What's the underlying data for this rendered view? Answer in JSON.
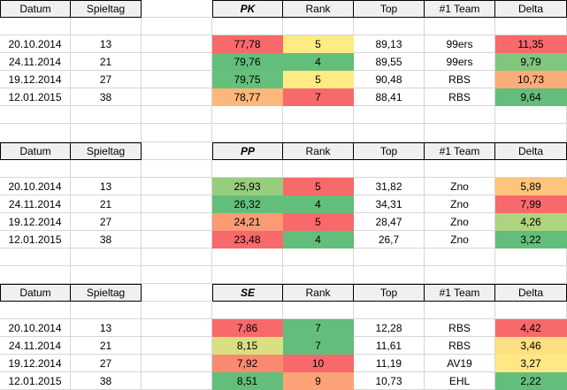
{
  "palette": {
    "red": "#F8696B",
    "yellow": "#FFEB84",
    "green": "#63BE7B",
    "gridline": "#d6d6d6",
    "header_fill": "#f0f0f0",
    "header_border": "#000000",
    "text": "#000000"
  },
  "columns": {
    "datum": "Datum",
    "spieltag": "Spieltag",
    "rank": "Rank",
    "top": "Top",
    "team": "#1 Team",
    "delta": "Delta"
  },
  "tables": [
    {
      "metric": "PK",
      "rows": [
        {
          "datum": "20.10.2014",
          "spieltag": "13",
          "value": "77,78",
          "value_bg": "#F8696B",
          "rank": "5",
          "rank_bg": "#FFEB84",
          "top": "89,13",
          "team": "99ers",
          "delta": "11,35",
          "delta_bg": "#F8696B"
        },
        {
          "datum": "24.11.2014",
          "spieltag": "21",
          "value": "79,76",
          "value_bg": "#63BE7B",
          "rank": "4",
          "rank_bg": "#63BE7B",
          "top": "89,55",
          "team": "99ers",
          "delta": "9,79",
          "delta_bg": "#7FC77D"
        },
        {
          "datum": "19.12.2014",
          "spieltag": "27",
          "value": "79,75",
          "value_bg": "#66BF7B",
          "rank": "5",
          "rank_bg": "#FFEB84",
          "top": "90,48",
          "team": "RBS",
          "delta": "10,73",
          "delta_bg": "#FBAC78"
        },
        {
          "datum": "12.01.2015",
          "spieltag": "38",
          "value": "78,77",
          "value_bg": "#FCB77A",
          "rank": "7",
          "rank_bg": "#F8696B",
          "top": "88,41",
          "team": "RBS",
          "delta": "9,64",
          "delta_bg": "#63BE7B"
        }
      ]
    },
    {
      "metric": "PP",
      "rows": [
        {
          "datum": "20.10.2014",
          "spieltag": "13",
          "value": "25,93",
          "value_bg": "#98CD7E",
          "rank": "5",
          "rank_bg": "#F8696B",
          "top": "31,82",
          "team": "Zno",
          "delta": "5,89",
          "delta_bg": "#FDC57C"
        },
        {
          "datum": "24.11.2014",
          "spieltag": "21",
          "value": "26,32",
          "value_bg": "#63BE7B",
          "rank": "4",
          "rank_bg": "#63BE7B",
          "top": "34,31",
          "team": "Zno",
          "delta": "7,99",
          "delta_bg": "#F8696B"
        },
        {
          "datum": "19.12.2014",
          "spieltag": "27",
          "value": "24,21",
          "value_bg": "#FA9B73",
          "rank": "5",
          "rank_bg": "#F8696B",
          "top": "28,47",
          "team": "Zno",
          "delta": "4,26",
          "delta_bg": "#AFD47F"
        },
        {
          "datum": "12.01.2015",
          "spieltag": "38",
          "value": "23,48",
          "value_bg": "#F8696B",
          "rank": "4",
          "rank_bg": "#63BE7B",
          "top": "26,7",
          "team": "Zno",
          "delta": "3,22",
          "delta_bg": "#63BE7B"
        }
      ]
    },
    {
      "metric": "SE",
      "rows": [
        {
          "datum": "20.10.2014",
          "spieltag": "13",
          "value": "7,86",
          "value_bg": "#F8696B",
          "rank": "7",
          "rank_bg": "#63BE7B",
          "top": "12,28",
          "team": "RBS",
          "delta": "4,42",
          "delta_bg": "#F8696B"
        },
        {
          "datum": "24.11.2014",
          "spieltag": "21",
          "value": "8,15",
          "value_bg": "#D9DF81",
          "rank": "7",
          "rank_bg": "#63BE7B",
          "top": "11,61",
          "team": "RBS",
          "delta": "3,46",
          "delta_bg": "#FEDF81"
        },
        {
          "datum": "19.12.2014",
          "spieltag": "27",
          "value": "7,92",
          "value_bg": "#F98A70",
          "rank": "10",
          "rank_bg": "#F8696B",
          "top": "11,19",
          "team": "AV19",
          "delta": "3,27",
          "delta_bg": "#FEE883"
        },
        {
          "datum": "12.01.2015",
          "spieltag": "38",
          "value": "8,51",
          "value_bg": "#63BE7B",
          "rank": "9",
          "rank_bg": "#FBA376",
          "top": "10,73",
          "team": "EHL",
          "delta": "2,22",
          "delta_bg": "#63BE7B"
        }
      ]
    }
  ]
}
